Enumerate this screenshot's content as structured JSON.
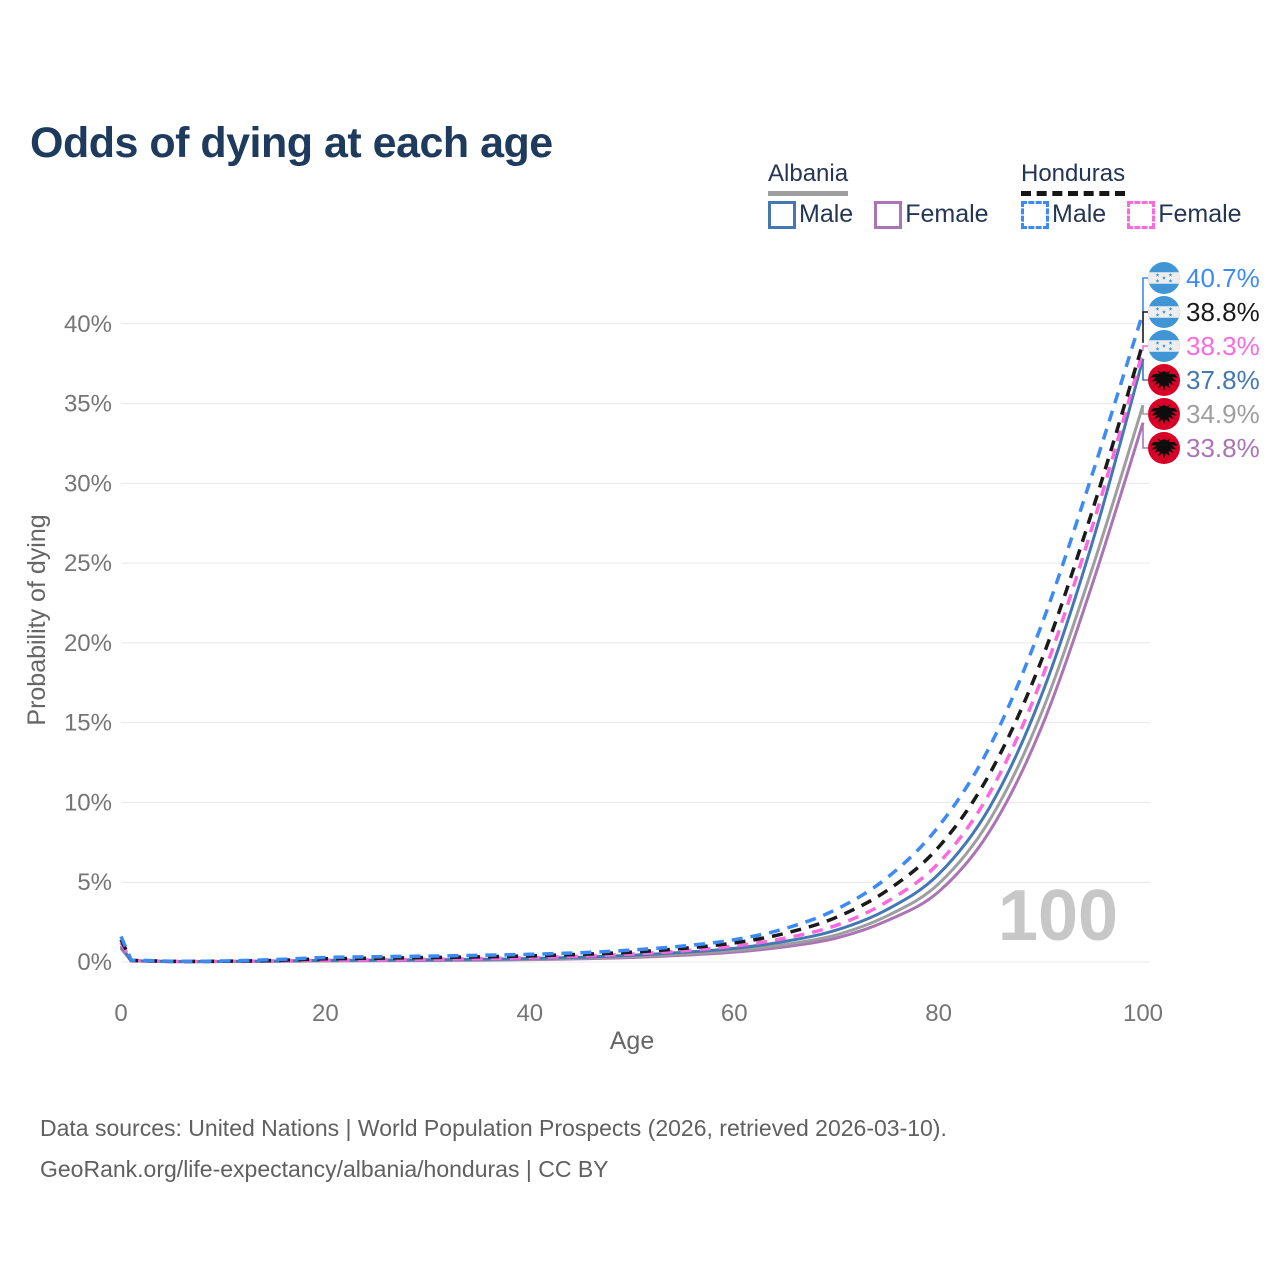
{
  "title": "Odds of dying at each age",
  "legend": {
    "groups": [
      {
        "id": "albania",
        "title": "Albania",
        "line_color": "#9e9e9e",
        "dashed": false,
        "items": [
          {
            "label": "Male",
            "color": "#4478b3"
          },
          {
            "label": "Female",
            "color": "#ab74b4"
          }
        ]
      },
      {
        "id": "honduras",
        "title": "Honduras",
        "line_color": "#1a1a1a",
        "dashed": true,
        "items": [
          {
            "label": "Male",
            "color": "#3d8af7"
          },
          {
            "label": "Female",
            "color": "#fa6ade"
          }
        ]
      }
    ]
  },
  "chart_data": {
    "type": "line",
    "title": "Odds of dying at each age",
    "xlabel": "Age",
    "ylabel": "Probability of dying",
    "xlim": [
      0,
      100
    ],
    "ylim": [
      0,
      43
    ],
    "grid": true,
    "watermark": "100",
    "x_ticks": [
      0,
      20,
      40,
      60,
      80,
      100
    ],
    "y_tick_values": [
      0,
      5,
      10,
      15,
      20,
      25,
      30,
      35,
      40
    ],
    "y_tick_labels": [
      "0%",
      "5%",
      "10%",
      "15%",
      "20%",
      "25%",
      "30%",
      "35%",
      "40%"
    ],
    "ages": [
      0,
      1,
      5,
      10,
      15,
      20,
      25,
      30,
      35,
      40,
      45,
      50,
      55,
      60,
      65,
      70,
      75,
      80,
      85,
      90,
      95,
      100
    ],
    "series": [
      {
        "name": "albania_female",
        "country": "Albania",
        "sex": "Female",
        "color": "#ab74b4",
        "dashed": false,
        "flag": "albania",
        "end_label": "33.8%",
        "values": [
          0.85,
          0.06,
          0.02,
          0.03,
          0.04,
          0.06,
          0.08,
          0.09,
          0.11,
          0.15,
          0.2,
          0.28,
          0.42,
          0.62,
          0.95,
          1.5,
          2.6,
          4.4,
          8.2,
          14.6,
          23.6,
          33.8
        ]
      },
      {
        "name": "albania_both",
        "country": "Albania",
        "sex": "Both",
        "color": "#9e9e9e",
        "dashed": false,
        "flag": "albania",
        "end_label": "34.9%",
        "values": [
          0.9,
          0.07,
          0.03,
          0.03,
          0.05,
          0.08,
          0.1,
          0.12,
          0.14,
          0.18,
          0.25,
          0.35,
          0.5,
          0.72,
          1.1,
          1.7,
          2.9,
          4.9,
          8.9,
          15.5,
          24.6,
          34.9
        ]
      },
      {
        "name": "albania_male",
        "country": "Albania",
        "sex": "Male",
        "color": "#4478b3",
        "dashed": false,
        "flag": "albania",
        "end_label": "37.8%",
        "values": [
          1.0,
          0.08,
          0.03,
          0.03,
          0.06,
          0.1,
          0.12,
          0.14,
          0.17,
          0.22,
          0.3,
          0.42,
          0.6,
          0.85,
          1.3,
          2.0,
          3.3,
          5.5,
          9.7,
          16.6,
          26.2,
          37.8
        ]
      },
      {
        "name": "honduras_female",
        "country": "Honduras",
        "sex": "Female",
        "color": "#fa6ade",
        "dashed": true,
        "flag": "honduras",
        "end_label": "38.3%",
        "values": [
          1.2,
          0.09,
          0.04,
          0.04,
          0.07,
          0.11,
          0.14,
          0.17,
          0.21,
          0.27,
          0.37,
          0.5,
          0.7,
          1.0,
          1.5,
          2.3,
          3.8,
          6.2,
          10.6,
          17.6,
          27.2,
          38.3
        ]
      },
      {
        "name": "honduras_both",
        "country": "Honduras",
        "sex": "Both",
        "color": "#1a1a1a",
        "dashed": true,
        "flag": "honduras",
        "end_label": "38.8%",
        "values": [
          1.4,
          0.1,
          0.04,
          0.05,
          0.1,
          0.2,
          0.24,
          0.28,
          0.32,
          0.38,
          0.48,
          0.62,
          0.85,
          1.2,
          1.8,
          2.8,
          4.5,
          7.2,
          11.8,
          18.8,
          28.2,
          38.8
        ]
      },
      {
        "name": "honduras_male",
        "country": "Honduras",
        "sex": "Male",
        "color": "#3d8af7",
        "dashed": true,
        "flag": "honduras",
        "end_label": "40.7%",
        "values": [
          1.6,
          0.12,
          0.05,
          0.06,
          0.15,
          0.28,
          0.33,
          0.37,
          0.42,
          0.48,
          0.58,
          0.75,
          1.0,
          1.4,
          2.1,
          3.3,
          5.3,
          8.5,
          13.5,
          21.0,
          30.5,
          40.7
        ]
      }
    ],
    "flag_colors": {
      "honduras_blue": "#4095d5",
      "honduras_band": "#ededed",
      "albania_red": "#d80027",
      "albania_eagle": "#0d0d0d"
    }
  },
  "footer": {
    "line1": "Data sources: United Nations | World Population Prospects (2026, retrieved 2026-03-10).",
    "line2": "GeoRank.org/life-expectancy/albania/honduras | CC BY"
  }
}
